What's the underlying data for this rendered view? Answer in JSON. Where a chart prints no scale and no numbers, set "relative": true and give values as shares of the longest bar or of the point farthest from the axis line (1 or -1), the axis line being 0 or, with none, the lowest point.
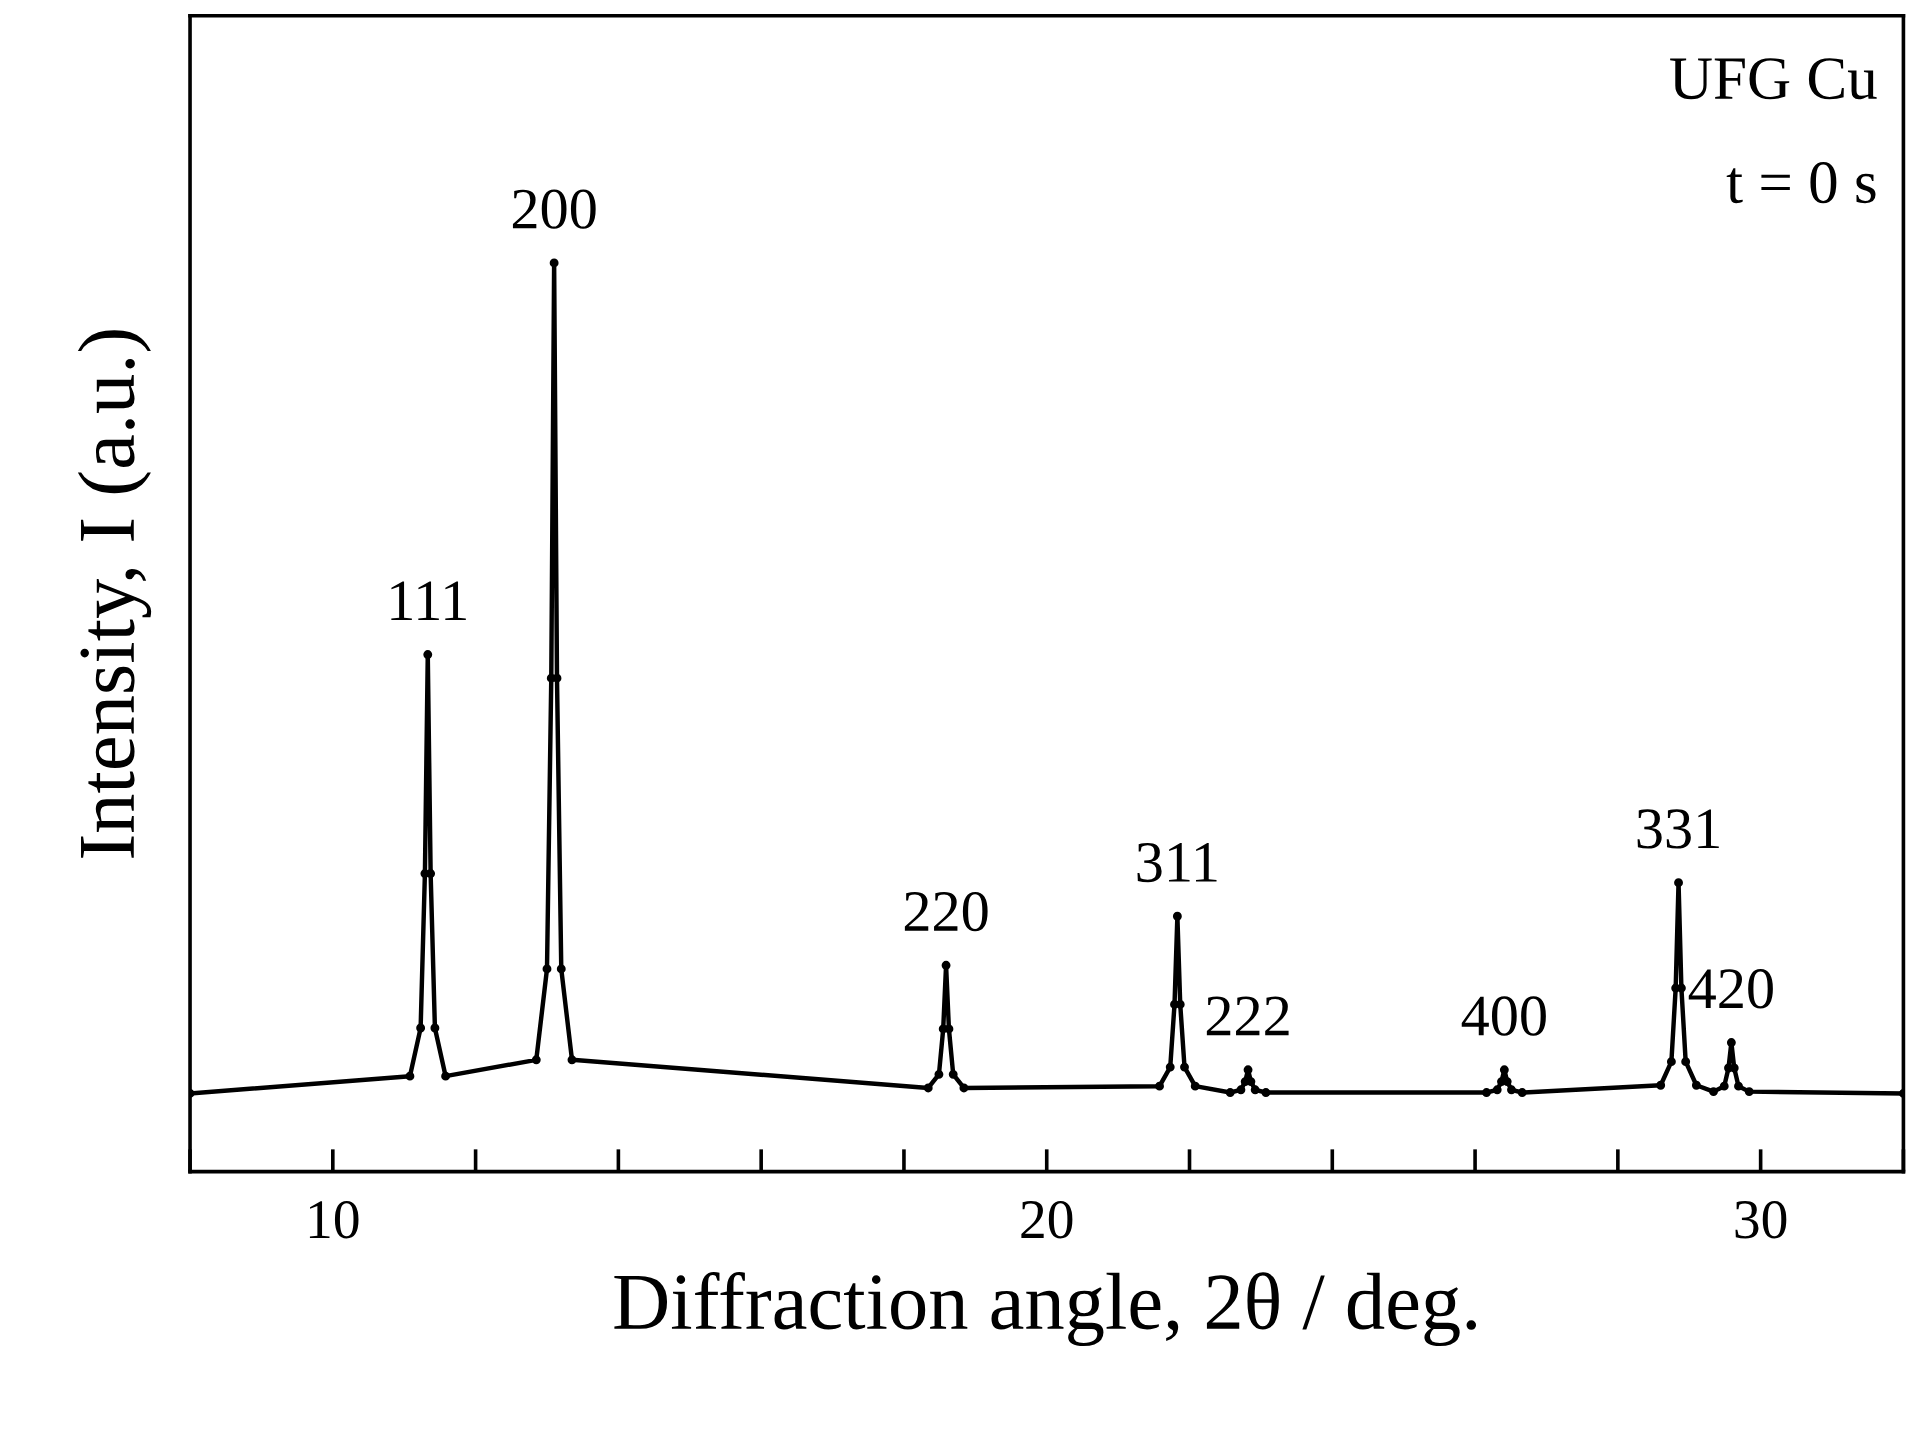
{
  "chart_data": {
    "type": "line",
    "relative": true,
    "xlabel": "Diffraction angle, 2θ / deg.",
    "ylabel": "Intensity, I (a.u.)",
    "x": [
      8,
      11.08,
      11.23,
      11.29,
      11.33,
      11.37,
      11.43,
      11.58,
      12.85,
      13.0,
      13.06,
      13.1,
      13.14,
      13.2,
      13.35,
      18.34,
      18.49,
      18.55,
      18.59,
      18.63,
      18.69,
      18.84,
      21.58,
      21.73,
      21.79,
      21.83,
      21.87,
      21.93,
      22.08,
      22.57,
      22.72,
      22.78,
      22.82,
      22.86,
      22.92,
      23.07,
      26.16,
      26.31,
      26.37,
      26.41,
      26.45,
      26.51,
      26.66,
      28.6,
      28.75,
      28.81,
      28.85,
      28.89,
      28.95,
      29.1,
      29.34,
      29.49,
      29.55,
      29.59,
      29.63,
      29.69,
      29.84,
      32
    ],
    "series": [
      {
        "color": "#000000",
        "values": [
          0.086,
          0.105,
          0.158,
          0.328,
          0.569,
          0.328,
          0.158,
          0.105,
          0.123,
          0.223,
          0.543,
          1.0,
          0.543,
          0.223,
          0.123,
          0.092,
          0.107,
          0.157,
          0.227,
          0.157,
          0.107,
          0.092,
          0.094,
          0.115,
          0.184,
          0.281,
          0.184,
          0.115,
          0.094,
          0.087,
          0.09,
          0.099,
          0.112,
          0.099,
          0.09,
          0.087,
          0.087,
          0.09,
          0.099,
          0.112,
          0.099,
          0.09,
          0.087,
          0.095,
          0.121,
          0.202,
          0.318,
          0.202,
          0.121,
          0.095,
          0.088,
          0.094,
          0.114,
          0.142,
          0.114,
          0.094,
          0.088,
          0.086
        ]
      }
    ],
    "xlim": [
      8,
      32
    ],
    "xticks": [
      {
        "value": 8,
        "label": null
      },
      10,
      {
        "value": 12,
        "label": null
      },
      {
        "value": 14,
        "label": null
      },
      {
        "value": 16,
        "label": null
      },
      {
        "value": 18,
        "label": null
      },
      20,
      {
        "value": 22,
        "label": null
      },
      {
        "value": 24,
        "label": null
      },
      {
        "value": 26,
        "label": null
      },
      {
        "value": 28,
        "label": null
      },
      30,
      {
        "value": 32,
        "label": null
      }
    ],
    "marker": "circle",
    "line_style": "solid",
    "grid": false,
    "annotations": [
      {
        "text": "111",
        "x": 11.33,
        "y": 0.569
      },
      {
        "text": "200",
        "x": 13.1,
        "y": 1.0
      },
      {
        "text": "220",
        "x": 18.59,
        "y": 0.227
      },
      {
        "text": "311",
        "x": 21.83,
        "y": 0.281
      },
      {
        "text": "222",
        "x": 22.82,
        "y": 0.112
      },
      {
        "text": "400",
        "x": 26.41,
        "y": 0.112
      },
      {
        "text": "331",
        "x": 28.85,
        "y": 0.318
      },
      {
        "text": "420",
        "x": 29.59,
        "y": 0.142
      },
      "UFG Cu",
      "t = 0 s"
    ]
  }
}
